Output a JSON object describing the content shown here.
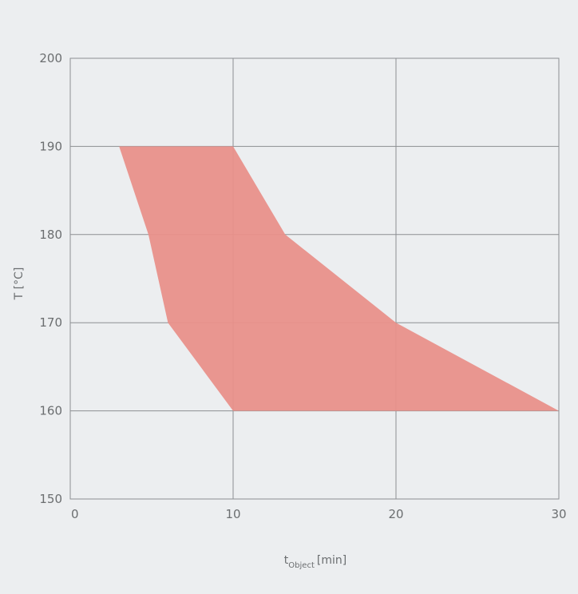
{
  "chart_data": {
    "type": "area",
    "title": "",
    "xlabel": {
      "main": "t",
      "subscript": "Object",
      "unit": "[min]"
    },
    "ylabel": "T [°C]",
    "xlim": [
      0,
      30
    ],
    "ylim": [
      150,
      200
    ],
    "x_ticks": [
      0,
      10,
      20,
      30
    ],
    "y_ticks": [
      150,
      160,
      170,
      180,
      190,
      200
    ],
    "grid": true,
    "region": {
      "name": "",
      "color": "#e9908a",
      "points": [
        {
          "x": 3,
          "y": 190
        },
        {
          "x": 10,
          "y": 190
        },
        {
          "x": 13.2,
          "y": 180
        },
        {
          "x": 20,
          "y": 170
        },
        {
          "x": 30,
          "y": 160
        },
        {
          "x": 10,
          "y": 160
        },
        {
          "x": 6,
          "y": 170
        },
        {
          "x": 4.8,
          "y": 180
        }
      ]
    }
  },
  "colors": {
    "background": "#eceef0",
    "grid": "#8c8f92",
    "text": "#6b6e70"
  }
}
